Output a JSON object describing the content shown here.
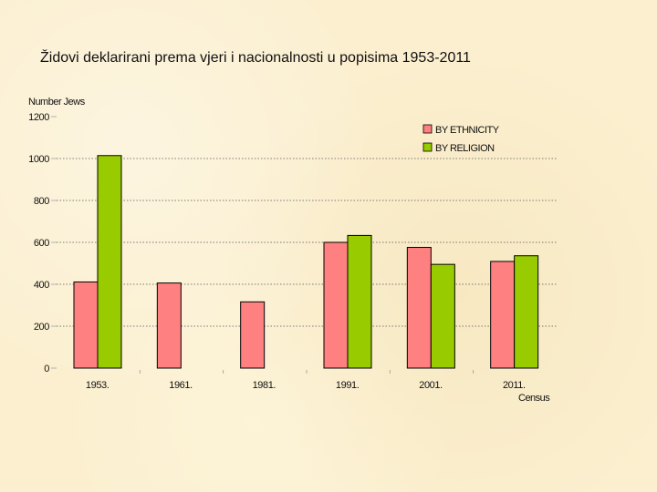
{
  "slide": {
    "title": "Židovi deklarirani prema vjeri i nacionalnosti u popisima 1953-2011"
  },
  "chart_data": {
    "type": "bar",
    "title": "Židovi deklarirani prema vjeri i nacionalnosti u popisima 1953-2011",
    "ylabel": "Number Jews",
    "xlabel": "Census",
    "ylim": [
      0,
      1200
    ],
    "yticks": [
      0,
      200,
      400,
      600,
      800,
      1000,
      1200
    ],
    "grid": "horizontal dotted",
    "legend_position": "top-right",
    "categories": [
      "1953.",
      "1961.",
      "1981.",
      "1991.",
      "2001.",
      "2011."
    ],
    "series": [
      {
        "name": "BY ETHNICITY",
        "color": "#ff8080",
        "values": [
          411,
          406,
          316,
          600,
          576,
          509
        ]
      },
      {
        "name": "BY RELIGION",
        "color": "#99cc00",
        "values": [
          1014,
          null,
          null,
          633,
          495,
          536
        ]
      }
    ]
  }
}
